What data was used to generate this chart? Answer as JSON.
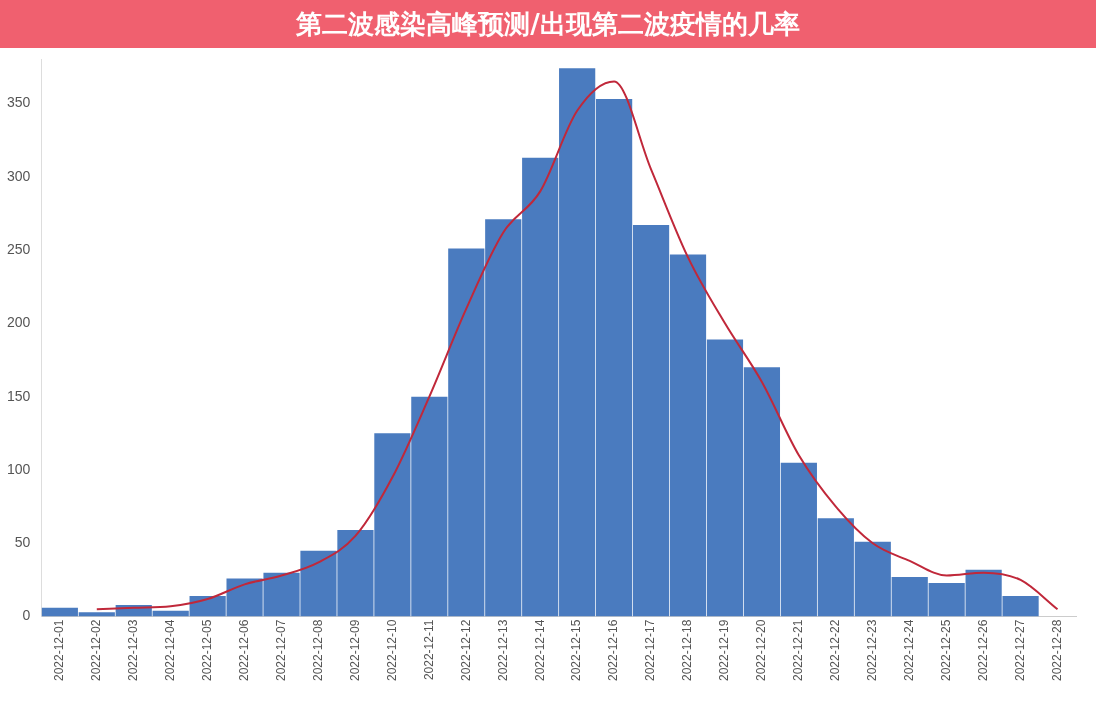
{
  "chart_data": {
    "type": "bar",
    "title": "第二波感染高峰预测/出现第二波疫情的几率",
    "categories": [
      "2022-12-01",
      "2022-12-02",
      "2022-12-03",
      "2022-12-04",
      "2022-12-05",
      "2022-12-06",
      "2022-12-07",
      "2022-12-08",
      "2022-12-09",
      "2022-12-10",
      "2022-12-11",
      "2022-12-12",
      "2022-12-13",
      "2022-12-14",
      "2022-12-15",
      "2022-12-16",
      "2022-12-17",
      "2022-12-18",
      "2022-12-19",
      "2022-12-20",
      "2022-12-21",
      "2022-12-22",
      "2022-12-23",
      "2022-12-24",
      "2022-12-25",
      "2022-12-26",
      "2022-12-27",
      "2022-12-28"
    ],
    "series": [
      {
        "color": "#4a7bbf",
        "values": [
          6,
          3,
          8,
          4,
          14,
          26,
          30,
          45,
          59,
          125,
          150,
          251,
          271,
          313,
          374,
          353,
          267,
          247,
          189,
          170,
          105,
          67,
          51,
          27,
          23,
          32,
          14,
          0
        ]
      },
      {
        "type": "line",
        "color": "#c0283a",
        "values": [
          null,
          5,
          6,
          7,
          12,
          22,
          28,
          37,
          55,
          95,
          150,
          210,
          262,
          290,
          345,
          365,
          305,
          245,
          200,
          160,
          110,
          75,
          50,
          38,
          28,
          30,
          25,
          5
        ]
      }
    ],
    "ylim": [
      0,
      380
    ],
    "yticks": [
      0,
      50,
      100,
      150,
      200,
      250,
      300,
      350
    ],
    "grid": false,
    "legend": false,
    "marker": "none"
  }
}
